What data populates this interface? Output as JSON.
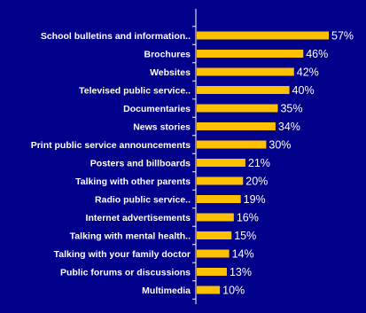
{
  "chart_data": {
    "type": "bar",
    "orientation": "horizontal",
    "categories": [
      "School bulletins and information..",
      "Brochures",
      "Websites",
      "Televised public service..",
      "Documentaries",
      "News stories",
      "Print public service announcements",
      "Posters and billboards",
      "Talking with other parents",
      "Radio public service..",
      "Internet advertisements",
      "Talking with mental health..",
      "Talking with your family doctor",
      "Public forums or discussions",
      "Multimedia"
    ],
    "values": [
      57,
      46,
      42,
      40,
      35,
      34,
      30,
      21,
      20,
      19,
      16,
      15,
      14,
      13,
      10
    ],
    "value_labels": [
      "57%",
      "46%",
      "42%",
      "40%",
      "35%",
      "34%",
      "30%",
      "21%",
      "20%",
      "19%",
      "16%",
      "15%",
      "14%",
      "13%",
      "10%"
    ],
    "title": "",
    "xlabel": "",
    "ylabel": "",
    "xlim": [
      0,
      57
    ],
    "grid": false,
    "legend": "none",
    "colors": {
      "background": "#00008B",
      "bar": "#FFC000",
      "label_text": "#FFFFFF",
      "value_text": "#FFFFFF",
      "axis": "#FFFFFF"
    }
  }
}
